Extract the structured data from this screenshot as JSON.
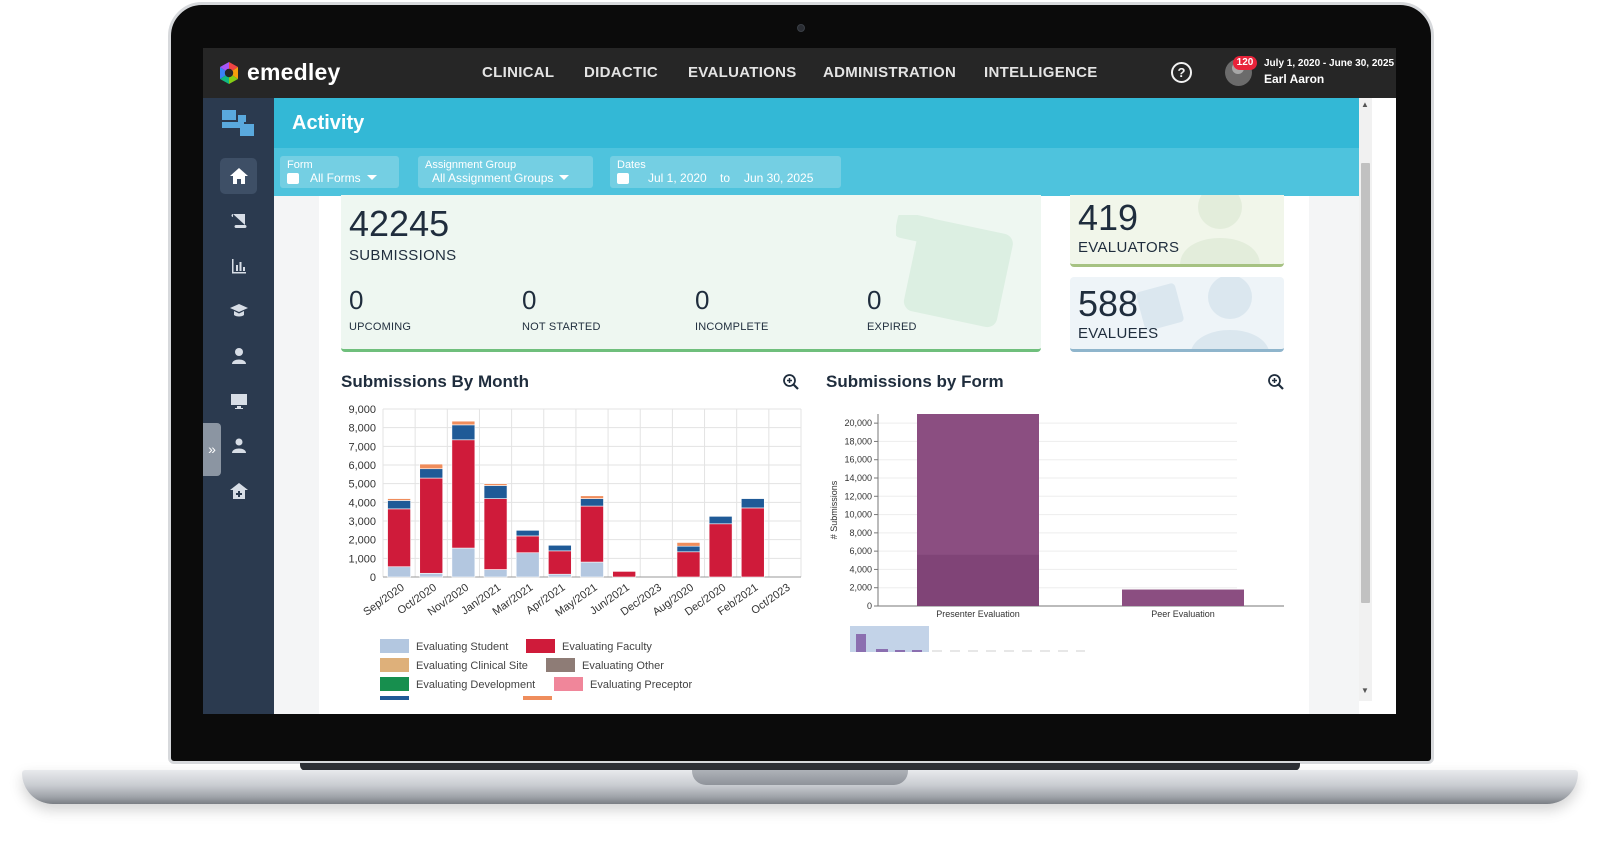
{
  "brand": {
    "name": "emedley"
  },
  "nav": {
    "items": [
      {
        "label": "CLINICAL"
      },
      {
        "label": "DIDACTIC"
      },
      {
        "label": "EVALUATIONS"
      },
      {
        "label": "ADMINISTRATION"
      },
      {
        "label": "INTELLIGENCE"
      }
    ],
    "help_icon": "?"
  },
  "user": {
    "notifications": "120",
    "date_range": "July 1, 2020 - June 30, 2025",
    "name": "Earl Aaron"
  },
  "sidebar": {
    "items": [
      {
        "icon": "home-icon",
        "active": true
      },
      {
        "icon": "scroll-icon"
      },
      {
        "icon": "bar-chart-icon"
      },
      {
        "icon": "graduation-cap-icon"
      },
      {
        "icon": "user-icon"
      },
      {
        "icon": "monitor-icon"
      },
      {
        "icon": "user-group-icon"
      },
      {
        "icon": "hospital-icon"
      }
    ],
    "expand_glyph": "»"
  },
  "page": {
    "title": "Activity"
  },
  "filters": {
    "form": {
      "label": "Form",
      "value": "All Forms"
    },
    "assignment_group": {
      "label": "Assignment Group",
      "value": "All Assignment Groups"
    },
    "dates": {
      "label": "Dates",
      "from": "Jul 1, 2020",
      "sep": "to",
      "to": "Jun 30, 2025"
    }
  },
  "stats": {
    "submissions": {
      "value": "42245",
      "label": "SUBMISSIONS"
    },
    "upcoming": {
      "value": "0",
      "label": "UPCOMING"
    },
    "not_started": {
      "value": "0",
      "label": "NOT STARTED"
    },
    "incomplete": {
      "value": "0",
      "label": "INCOMPLETE"
    },
    "expired": {
      "value": "0",
      "label": "EXPIRED"
    },
    "evaluators": {
      "value": "419",
      "label": "EVALUATORS"
    },
    "evaluees": {
      "value": "588",
      "label": "EVALUEES"
    }
  },
  "sections": {
    "by_month": {
      "title": "Submissions By Month"
    },
    "by_form": {
      "title": "Submissions by Form"
    }
  },
  "colors": {
    "evaluating_student": "#b3c7e0",
    "evaluating_faculty": "#cf1b3a",
    "evaluating_clinical_site": "#deb07a",
    "evaluating_other": "#8e7c76",
    "evaluating_development": "#178f4e",
    "evaluating_preceptor": "#f0869a",
    "extra_blue": "#1f5a97",
    "extra_orange": "#ef8d5c",
    "form_bar": "#8b4e81",
    "form_bar_dark": "#7a3e72"
  },
  "chart_data": [
    {
      "type": "bar",
      "stacked": true,
      "title": "Submissions By Month",
      "categories": [
        "Sep/2020",
        "Oct/2020",
        "Nov/2020",
        "Jan/2021",
        "Mar/2021",
        "Apr/2021",
        "May/2021",
        "Jun/2021",
        "Dec/2023",
        "Aug/2020",
        "Dec/2020",
        "Feb/2021",
        "Oct/2023"
      ],
      "series": [
        {
          "name": "Evaluating Student",
          "values": [
            550,
            200,
            1550,
            400,
            1300,
            150,
            800,
            0,
            0,
            0,
            0,
            0,
            0
          ]
        },
        {
          "name": "Evaluating Faculty",
          "values": [
            3100,
            5100,
            5800,
            3800,
            900,
            1250,
            3000,
            300,
            0,
            1350,
            2850,
            3700,
            0
          ]
        },
        {
          "name": "",
          "values": [
            450,
            500,
            800,
            700,
            300,
            300,
            400,
            0,
            0,
            300,
            400,
            500,
            0
          ]
        },
        {
          "name": "",
          "values": [
            100,
            250,
            200,
            100,
            0,
            0,
            150,
            0,
            0,
            200,
            0,
            0,
            0
          ]
        }
      ],
      "legend": [
        "Evaluating Student",
        "Evaluating Faculty",
        "Evaluating Clinical Site",
        "Evaluating Other",
        "Evaluating Development",
        "Evaluating Preceptor"
      ],
      "ylim": [
        0,
        9000
      ],
      "yticks": [
        "9,000",
        "8,000",
        "7,000",
        "6,000",
        "5,000",
        "4,000",
        "3,000",
        "2,000",
        "1,000",
        "0"
      ],
      "grid": true,
      "legend_position": "bottom"
    },
    {
      "type": "bar",
      "title": "Submissions by Form",
      "categories": [
        "Presenter Evaluation",
        "Peer Evaluation"
      ],
      "values": [
        21000,
        1800
      ],
      "ylabel": "# Submissions",
      "ylim": [
        0,
        21000
      ],
      "yticks": [
        "20,000",
        "18,000",
        "16,000",
        "14,000",
        "12,000",
        "10,000",
        "8,000",
        "6,000",
        "4,000",
        "2,000",
        "0"
      ],
      "grid": true
    }
  ]
}
